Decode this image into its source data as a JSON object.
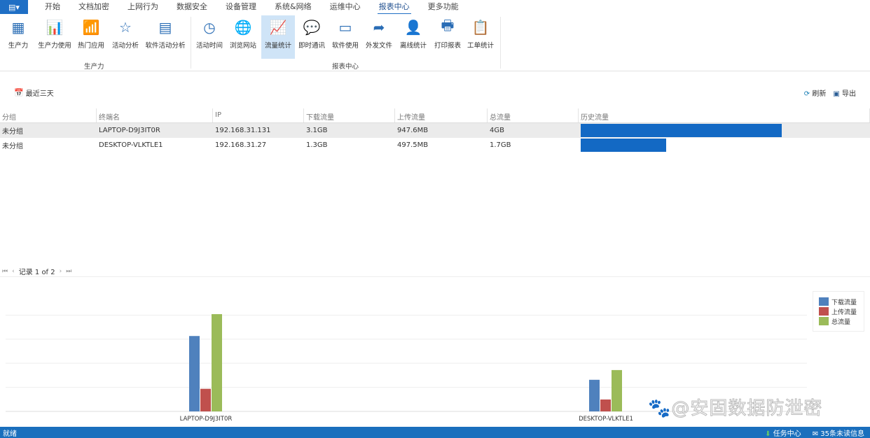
{
  "tabs": [
    "开始",
    "文档加密",
    "上网行为",
    "数据安全",
    "设备管理",
    "系统&网络",
    "运维中心",
    "报表中心",
    "更多功能"
  ],
  "active_tab": "报表中心",
  "ribbon": {
    "groups": [
      {
        "label": "生产力"
      },
      {
        "label": "报表中心"
      }
    ],
    "buttons": [
      {
        "label": "生产力",
        "icon": "grid-icon"
      },
      {
        "label": "生产力使用",
        "icon": "doc-chart-icon"
      },
      {
        "label": "热门应用",
        "icon": "bars-icon"
      },
      {
        "label": "活动分析",
        "icon": "doc-star-icon"
      },
      {
        "label": "软件活动分析",
        "icon": "window-chart-icon"
      },
      {
        "label": "活动时间",
        "icon": "clock-history-icon"
      },
      {
        "label": "浏览网站",
        "icon": "globe-icon"
      },
      {
        "label": "流量统计",
        "icon": "traffic-chart-icon"
      },
      {
        "label": "即时通讯",
        "icon": "chat-icon"
      },
      {
        "label": "软件使用",
        "icon": "window-user-icon"
      },
      {
        "label": "外发文件",
        "icon": "file-export-icon"
      },
      {
        "label": "离线统计",
        "icon": "user-info-icon"
      },
      {
        "label": "打印报表",
        "icon": "printer-icon"
      },
      {
        "label": "工单统计",
        "icon": "clipboard-icon"
      }
    ]
  },
  "toolbar": {
    "date_range": "最近三天",
    "refresh": "刷新",
    "export": "导出"
  },
  "table": {
    "columns": [
      "分组",
      "终端名",
      "IP",
      "下载流量",
      "上传流量",
      "总流量",
      "历史流量"
    ],
    "rows": [
      {
        "group": "未分组",
        "name": "LAPTOP-D9J3IT0R",
        "ip": "192.168.31.131",
        "down": "3.1GB",
        "up": "947.6MB",
        "total": "4GB",
        "history_fraction": 1.0
      },
      {
        "group": "未分组",
        "name": "DESKTOP-VLKTLE1",
        "ip": "192.168.31.27",
        "down": "1.3GB",
        "up": "497.5MB",
        "total": "1.7GB",
        "history_fraction": 0.425
      }
    ]
  },
  "pager": {
    "text": "记录 1 of 2"
  },
  "chart_data": {
    "type": "bar",
    "categories": [
      "LAPTOP-D9J3IT0R",
      "DESKTOP-VLKTLE1"
    ],
    "series": [
      {
        "name": "下载流量",
        "values": [
          3.1,
          1.3
        ],
        "color": "#4f81bd"
      },
      {
        "name": "上传流量",
        "values": [
          0.93,
          0.49
        ],
        "color": "#c0504d"
      },
      {
        "name": "总流量",
        "values": [
          4.0,
          1.7
        ],
        "color": "#9bbb59"
      }
    ],
    "ylim": [
      0,
      4.2
    ],
    "grid": true,
    "legend": "top-right"
  },
  "status": {
    "left": "就绪",
    "task_center": "任务中心",
    "messages": "35条未读信息"
  },
  "watermark": "@安固数据防泄密"
}
